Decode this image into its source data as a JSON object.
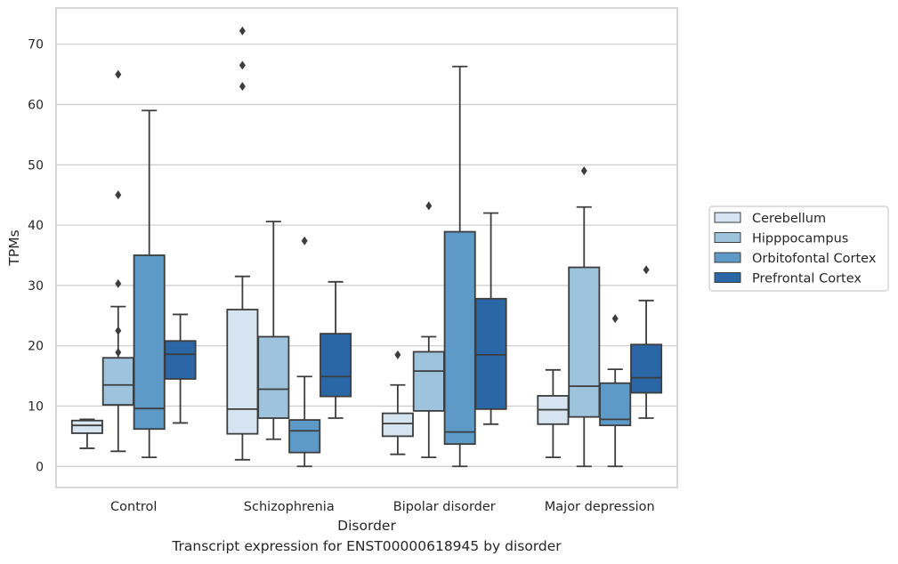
{
  "caption": "Transcript expression for ENST00000618945 by disorder",
  "chart_data": {
    "type": "box",
    "title": "",
    "xlabel": "Disorder",
    "ylabel": "TPMs",
    "ylim": [
      -3.5,
      76
    ],
    "yticks": [
      0,
      10,
      20,
      30,
      40,
      50,
      60,
      70
    ],
    "grid": "horizontal",
    "legend_position": "right",
    "categories": [
      "Control",
      "Schizophrenia",
      "Bipolar disorder",
      "Major depression"
    ],
    "series": [
      {
        "name": "Cerebellum",
        "color": "#d6e4f1",
        "boxes": [
          {
            "whislo": 3.0,
            "q1": 5.5,
            "med": 6.8,
            "q3": 7.6,
            "whishi": 7.8,
            "fliers": []
          },
          {
            "whislo": 1.1,
            "q1": 5.4,
            "med": 9.5,
            "q3": 26.0,
            "whishi": 31.5,
            "fliers": [
              72.2,
              66.5,
              63.0
            ]
          },
          {
            "whislo": 2.0,
            "q1": 5.0,
            "med": 7.1,
            "q3": 8.8,
            "whishi": 13.5,
            "fliers": [
              18.5
            ]
          },
          {
            "whislo": 1.5,
            "q1": 7.0,
            "med": 9.4,
            "q3": 11.7,
            "whishi": 16.0,
            "fliers": []
          }
        ]
      },
      {
        "name": "Hipppocampus",
        "color": "#9dc3dd",
        "boxes": [
          {
            "whislo": 2.5,
            "q1": 10.2,
            "med": 13.5,
            "q3": 18.0,
            "whishi": 26.5,
            "fliers": [
              65.0,
              45.0,
              30.3,
              22.5,
              18.9
            ]
          },
          {
            "whislo": 4.5,
            "q1": 8.0,
            "med": 12.8,
            "q3": 21.5,
            "whishi": 40.6,
            "fliers": []
          },
          {
            "whislo": 1.5,
            "q1": 9.2,
            "med": 15.8,
            "q3": 19.0,
            "whishi": 21.5,
            "fliers": [
              43.2
            ]
          },
          {
            "whislo": 0.0,
            "q1": 8.2,
            "med": 13.3,
            "q3": 33.0,
            "whishi": 43.0,
            "fliers": [
              49.0
            ]
          }
        ]
      },
      {
        "name": "Orbitofontal Cortex",
        "color": "#5d9ac8",
        "boxes": [
          {
            "whislo": 1.5,
            "q1": 6.2,
            "med": 9.6,
            "q3": 35.0,
            "whishi": 59.0,
            "fliers": []
          },
          {
            "whislo": 0.0,
            "q1": 2.3,
            "med": 5.9,
            "q3": 7.7,
            "whishi": 14.9,
            "fliers": [
              37.4
            ]
          },
          {
            "whislo": 0.0,
            "q1": 3.7,
            "med": 5.7,
            "q3": 38.9,
            "whishi": 66.3,
            "fliers": []
          },
          {
            "whislo": 0.0,
            "q1": 6.8,
            "med": 7.8,
            "q3": 13.8,
            "whishi": 16.1,
            "fliers": [
              24.5
            ]
          }
        ]
      },
      {
        "name": "Prefrontal Cortex",
        "color": "#2b67a7",
        "boxes": [
          {
            "whislo": 7.2,
            "q1": 14.5,
            "med": 18.6,
            "q3": 20.8,
            "whishi": 25.2,
            "fliers": []
          },
          {
            "whislo": 8.0,
            "q1": 11.6,
            "med": 14.9,
            "q3": 22.0,
            "whishi": 30.6,
            "fliers": []
          },
          {
            "whislo": 7.0,
            "q1": 9.5,
            "med": 18.5,
            "q3": 27.8,
            "whishi": 42.0,
            "fliers": []
          },
          {
            "whislo": 8.0,
            "q1": 12.2,
            "med": 14.7,
            "q3": 20.2,
            "whishi": 27.5,
            "fliers": [
              32.6
            ]
          }
        ]
      }
    ]
  }
}
